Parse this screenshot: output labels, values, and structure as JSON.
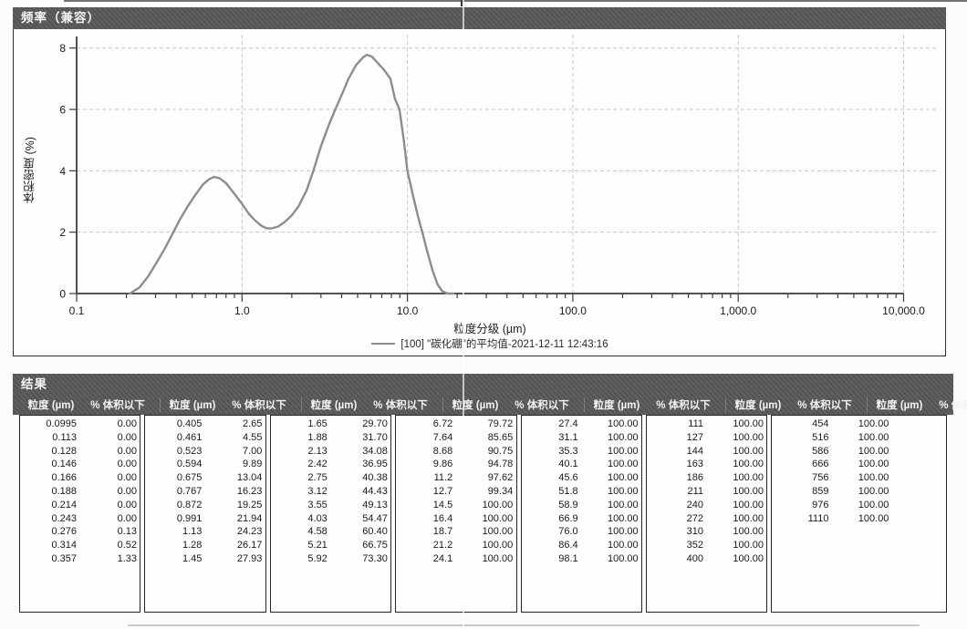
{
  "chart_panel": {
    "title": "频率（兼容）",
    "xlabel": "粒度分级 (µm)",
    "ylabel": "体积密度 (%)",
    "legend": "[100] \"碳化硼\"的平均值-2021-12-11 12:43:16",
    "x_ticks": [
      "0.1",
      "1.0",
      "10.0",
      "100.0",
      "1,000.0",
      "10,000.0"
    ],
    "y_ticks": [
      "0",
      "2",
      "4",
      "6",
      "8"
    ],
    "bar_color": "#585658",
    "curve_color": "#8f8d8b"
  },
  "chart_data": {
    "type": "line",
    "title": "频率（兼容）",
    "xlabel": "粒度分级 (µm)",
    "ylabel": "体积密度 (%)",
    "x_scale": "log",
    "xlim": [
      0.1,
      10000
    ],
    "ylim": [
      0,
      8
    ],
    "grid": true,
    "legend_position": "bottom",
    "series": [
      {
        "name": "[100] \"碳化硼\"的平均值-2021-12-11 12:43:16",
        "color": "#8f8d8b",
        "points": [
          [
            0.21,
            0
          ],
          [
            0.24,
            0.2
          ],
          [
            0.27,
            0.55
          ],
          [
            0.3,
            0.95
          ],
          [
            0.34,
            1.45
          ],
          [
            0.38,
            1.95
          ],
          [
            0.42,
            2.4
          ],
          [
            0.47,
            2.85
          ],
          [
            0.52,
            3.2
          ],
          [
            0.58,
            3.55
          ],
          [
            0.63,
            3.72
          ],
          [
            0.675,
            3.8
          ],
          [
            0.73,
            3.76
          ],
          [
            0.8,
            3.6
          ],
          [
            0.9,
            3.25
          ],
          [
            1.0,
            2.92
          ],
          [
            1.1,
            2.6
          ],
          [
            1.2,
            2.38
          ],
          [
            1.3,
            2.22
          ],
          [
            1.4,
            2.13
          ],
          [
            1.5,
            2.12
          ],
          [
            1.65,
            2.18
          ],
          [
            1.8,
            2.32
          ],
          [
            2.0,
            2.55
          ],
          [
            2.2,
            2.85
          ],
          [
            2.45,
            3.35
          ],
          [
            2.7,
            4.0
          ],
          [
            3.0,
            4.8
          ],
          [
            3.35,
            5.5
          ],
          [
            3.7,
            6.05
          ],
          [
            4.1,
            6.6
          ],
          [
            4.4,
            7.0
          ],
          [
            4.9,
            7.45
          ],
          [
            5.4,
            7.7
          ],
          [
            5.7,
            7.78
          ],
          [
            6.1,
            7.72
          ],
          [
            6.6,
            7.52
          ],
          [
            7.2,
            7.3
          ],
          [
            7.9,
            7.0
          ],
          [
            8.4,
            6.35
          ],
          [
            8.95,
            6.0
          ],
          [
            9.5,
            5.0
          ],
          [
            10.0,
            4.0
          ],
          [
            10.8,
            3.2
          ],
          [
            11.6,
            2.5
          ],
          [
            12.3,
            2.0
          ],
          [
            13.2,
            1.35
          ],
          [
            14.2,
            0.75
          ],
          [
            15.2,
            0.3
          ],
          [
            16.2,
            0.08
          ],
          [
            17.5,
            0
          ],
          [
            19.0,
            0
          ]
        ]
      }
    ]
  },
  "results": {
    "title": "结果",
    "col_size": "粒度 (µm)",
    "col_pct": "% 体积以下",
    "sections": [
      {
        "rows": [
          [
            "0.0995",
            "0.00"
          ],
          [
            "0.113",
            "0.00"
          ],
          [
            "0.128",
            "0.00"
          ],
          [
            "0.146",
            "0.00"
          ],
          [
            "0.166",
            "0.00"
          ],
          [
            "0.188",
            "0.00"
          ],
          [
            "0.214",
            "0.00"
          ],
          [
            "0.243",
            "0.00"
          ],
          [
            "0.276",
            "0.13"
          ],
          [
            "0.314",
            "0.52"
          ],
          [
            "0.357",
            "1.33"
          ]
        ]
      },
      {
        "rows": [
          [
            "0.405",
            "2.65"
          ],
          [
            "0.461",
            "4.55"
          ],
          [
            "0.523",
            "7.00"
          ],
          [
            "0.594",
            "9.89"
          ],
          [
            "0.675",
            "13.04"
          ],
          [
            "0.767",
            "16.23"
          ],
          [
            "0.872",
            "19.25"
          ],
          [
            "0.991",
            "21.94"
          ],
          [
            "1.13",
            "24.23"
          ],
          [
            "1.28",
            "26.17"
          ],
          [
            "1.45",
            "27.93"
          ]
        ]
      },
      {
        "rows": [
          [
            "1.65",
            "29.70"
          ],
          [
            "1.88",
            "31.70"
          ],
          [
            "2.13",
            "34.08"
          ],
          [
            "2.42",
            "36.95"
          ],
          [
            "2.75",
            "40.38"
          ],
          [
            "3.12",
            "44.43"
          ],
          [
            "3.55",
            "49.13"
          ],
          [
            "4.03",
            "54.47"
          ],
          [
            "4.58",
            "60.40"
          ],
          [
            "5.21",
            "66.75"
          ],
          [
            "5.92",
            "73.30"
          ]
        ]
      },
      {
        "rows": [
          [
            "6.72",
            "79.72"
          ],
          [
            "7.64",
            "85.65"
          ],
          [
            "8.68",
            "90.75"
          ],
          [
            "9.86",
            "94.78"
          ],
          [
            "11.2",
            "97.62"
          ],
          [
            "12.7",
            "99.34"
          ],
          [
            "14.5",
            "100.00"
          ],
          [
            "16.4",
            "100.00"
          ],
          [
            "18.7",
            "100.00"
          ],
          [
            "21.2",
            "100.00"
          ],
          [
            "24.1",
            "100.00"
          ]
        ]
      },
      {
        "rows": [
          [
            "27.4",
            "100.00"
          ],
          [
            "31.1",
            "100.00"
          ],
          [
            "35.3",
            "100.00"
          ],
          [
            "40.1",
            "100.00"
          ],
          [
            "45.6",
            "100.00"
          ],
          [
            "51.8",
            "100.00"
          ],
          [
            "58.9",
            "100.00"
          ],
          [
            "66.9",
            "100.00"
          ],
          [
            "76.0",
            "100.00"
          ],
          [
            "86.4",
            "100.00"
          ],
          [
            "98.1",
            "100.00"
          ]
        ]
      },
      {
        "rows": [
          [
            "111",
            "100.00"
          ],
          [
            "127",
            "100.00"
          ],
          [
            "144",
            "100.00"
          ],
          [
            "163",
            "100.00"
          ],
          [
            "186",
            "100.00"
          ],
          [
            "211",
            "100.00"
          ],
          [
            "240",
            "100.00"
          ],
          [
            "272",
            "100.00"
          ],
          [
            "310",
            "100.00"
          ],
          [
            "352",
            "100.00"
          ],
          [
            "400",
            "100.00"
          ]
        ]
      },
      {
        "rows": [
          [
            "454",
            "100.00"
          ],
          [
            "516",
            "100.00"
          ],
          [
            "586",
            "100.00"
          ],
          [
            "666",
            "100.00"
          ],
          [
            "756",
            "100.00"
          ],
          [
            "859",
            "100.00"
          ],
          [
            "976",
            "100.00"
          ],
          [
            "1110",
            "100.00"
          ]
        ]
      }
    ]
  }
}
